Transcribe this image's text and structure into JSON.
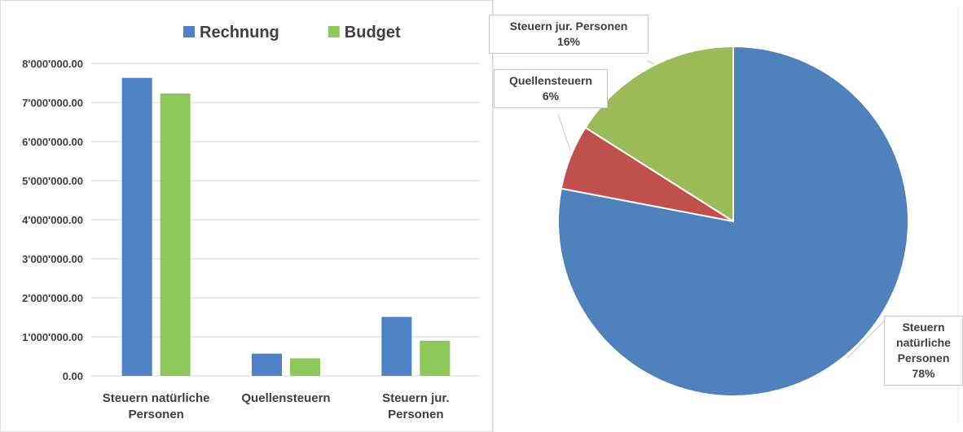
{
  "chart_data": [
    {
      "type": "bar",
      "categories": [
        "Steuern natürliche Personen",
        "Quellensteuern",
        "Steuern jur. Personen"
      ],
      "series": [
        {
          "name": "Rechnung",
          "color": "#4f81c7",
          "values": [
            7630000,
            570000,
            1510000
          ]
        },
        {
          "name": "Budget",
          "color": "#8cc85a",
          "values": [
            7230000,
            450000,
            900000
          ]
        }
      ],
      "ylim": [
        0,
        8000000
      ],
      "yticks": [
        {
          "value": 0,
          "label": "0.00"
        },
        {
          "value": 1000000,
          "label": "1'000'000.00"
        },
        {
          "value": 2000000,
          "label": "2'000'000.00"
        },
        {
          "value": 3000000,
          "label": "3'000'000.00"
        },
        {
          "value": 4000000,
          "label": "4'000'000.00"
        },
        {
          "value": 5000000,
          "label": "5'000'000.00"
        },
        {
          "value": 6000000,
          "label": "6'000'000.00"
        },
        {
          "value": 7000000,
          "label": "7'000'000.00"
        },
        {
          "value": 8000000,
          "label": "8'000'000.00"
        }
      ],
      "grid": true,
      "legend": "top"
    },
    {
      "type": "pie",
      "categories": [
        "Steuern natürliche Personen",
        "Quellensteuern",
        "Steuern jur. Personen"
      ],
      "values": [
        78,
        6,
        16
      ],
      "value_labels": [
        "78%",
        "6%",
        "16%"
      ],
      "colors": [
        "#4f81bd",
        "#c0504d",
        "#9bbb59"
      ]
    }
  ]
}
